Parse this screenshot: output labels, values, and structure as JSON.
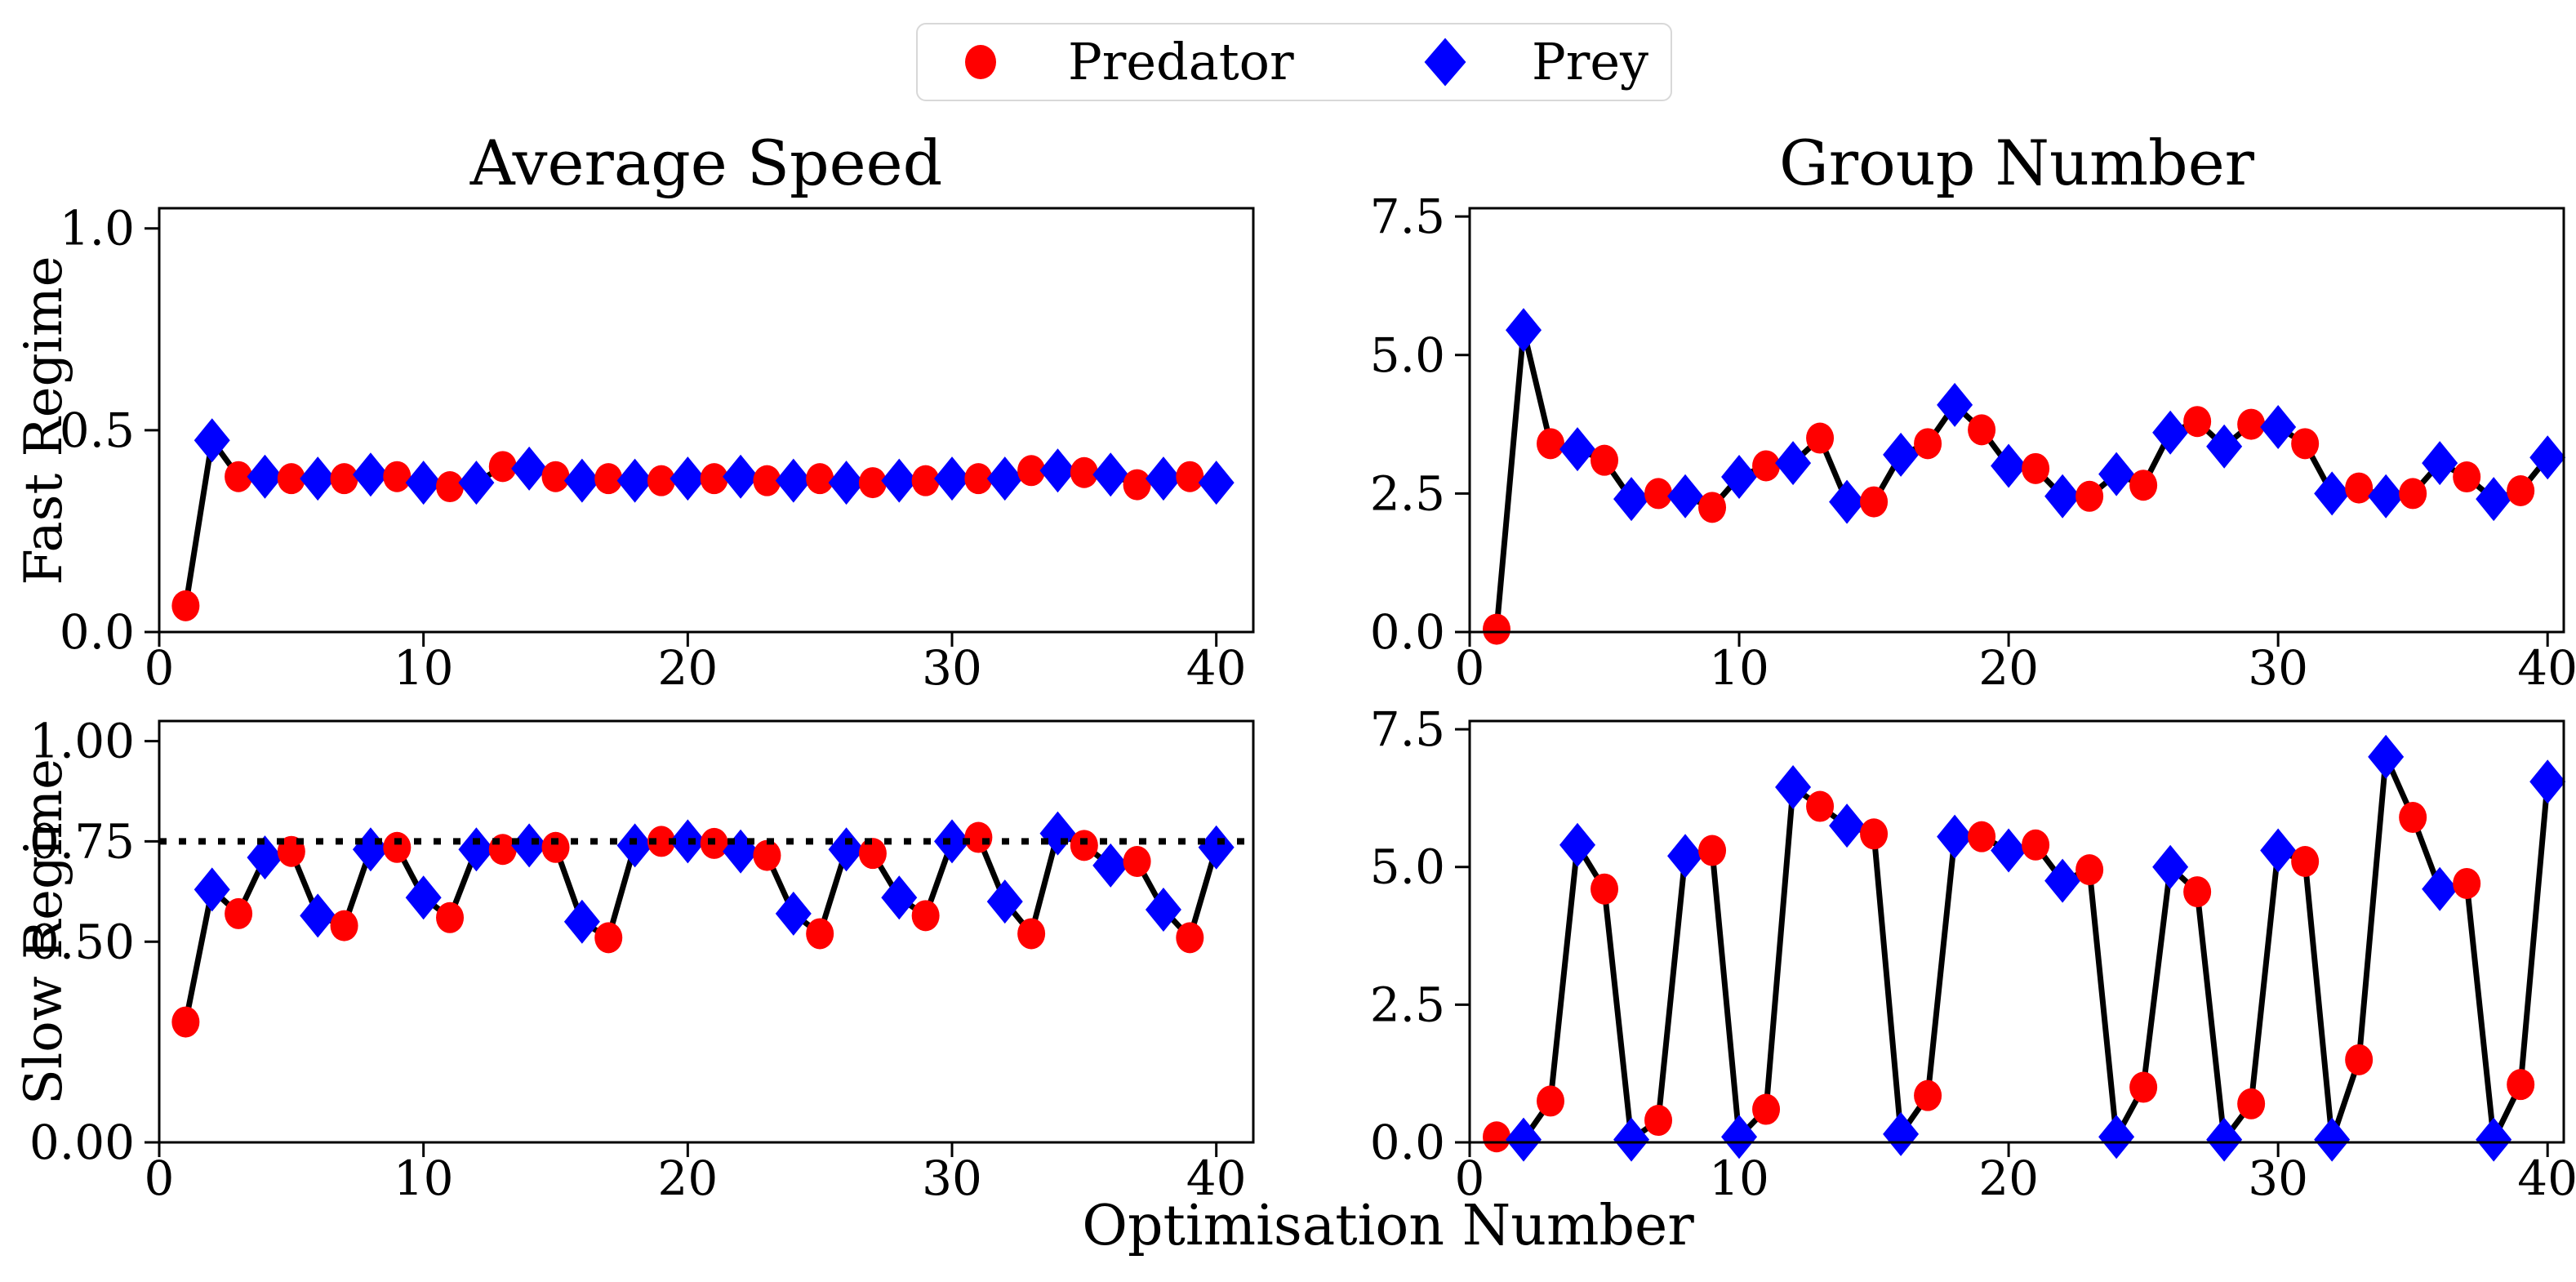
{
  "xlabel": "Optimisation Number",
  "legend": {
    "items": [
      {
        "label": "Predator",
        "marker": "circle-icon",
        "color": "#ff0000"
      },
      {
        "label": "Prey",
        "marker": "diamond-icon",
        "color": "#0000ff"
      }
    ]
  },
  "colors": {
    "predator": "#ff0000",
    "prey": "#0000ff",
    "line": "#000000",
    "frame": "#000000"
  },
  "marker_pattern": {
    "odd_optimisation_number": "Predator",
    "even_optimisation_number": "Prey"
  },
  "chart_data": [
    {
      "id": "fast-average-speed",
      "type": "line",
      "title": "Average Speed",
      "ylabel": "Fast Regime",
      "x_start": 1,
      "x_step": 1,
      "n_points": 40,
      "values": [
        0.065,
        0.475,
        0.385,
        0.385,
        0.38,
        0.38,
        0.38,
        0.39,
        0.385,
        0.37,
        0.36,
        0.37,
        0.41,
        0.405,
        0.385,
        0.375,
        0.38,
        0.375,
        0.375,
        0.38,
        0.38,
        0.385,
        0.375,
        0.375,
        0.38,
        0.37,
        0.37,
        0.375,
        0.375,
        0.38,
        0.38,
        0.38,
        0.4,
        0.4,
        0.395,
        0.39,
        0.365,
        0.38,
        0.385,
        0.37
      ],
      "xlim": [
        0,
        41.4
      ],
      "ylim": [
        0,
        1.05
      ],
      "xticks": [
        0,
        10,
        20,
        30,
        40
      ],
      "xtick_labels": [
        "0",
        "10",
        "20",
        "30",
        "40"
      ],
      "yticks": [
        0,
        0.5,
        1.0
      ],
      "ytick_labels": [
        "0.0",
        "0.5",
        "1.0"
      ],
      "target_line": null,
      "grid": false
    },
    {
      "id": "fast-group-number",
      "type": "line",
      "title": "Group Number",
      "ylabel": "",
      "x_start": 1,
      "x_step": 1,
      "n_points": 40,
      "values": [
        0.05,
        5.45,
        3.4,
        3.3,
        3.1,
        2.4,
        2.5,
        2.45,
        2.25,
        2.8,
        3.0,
        3.05,
        3.5,
        2.35,
        2.35,
        3.2,
        3.4,
        4.1,
        3.65,
        3.0,
        2.95,
        2.45,
        2.45,
        2.85,
        2.65,
        3.6,
        3.8,
        3.35,
        3.75,
        3.7,
        3.4,
        2.5,
        2.6,
        2.45,
        2.5,
        3.05,
        2.8,
        2.4,
        2.55,
        3.15
      ],
      "xlim": [
        0,
        40.6
      ],
      "ylim": [
        0,
        7.65
      ],
      "xticks": [
        0,
        10,
        20,
        30,
        40
      ],
      "xtick_labels": [
        "0",
        "10",
        "20",
        "30",
        "40"
      ],
      "yticks": [
        0,
        2.5,
        5.0,
        7.5
      ],
      "ytick_labels": [
        "0.0",
        "2.5",
        "5.0",
        "7.5"
      ],
      "target_line": null,
      "grid": false
    },
    {
      "id": "slow-average-speed",
      "type": "line",
      "title": "",
      "ylabel": "Slow Regime",
      "x_start": 1,
      "x_step": 1,
      "n_points": 40,
      "values": [
        0.3,
        0.63,
        0.57,
        0.71,
        0.725,
        0.565,
        0.54,
        0.73,
        0.735,
        0.61,
        0.56,
        0.73,
        0.73,
        0.74,
        0.735,
        0.55,
        0.51,
        0.74,
        0.75,
        0.75,
        0.745,
        0.725,
        0.715,
        0.57,
        0.52,
        0.73,
        0.72,
        0.61,
        0.565,
        0.75,
        0.76,
        0.6,
        0.52,
        0.77,
        0.74,
        0.69,
        0.7,
        0.58,
        0.51,
        0.735
      ],
      "xlim": [
        0,
        41.4
      ],
      "ylim": [
        0,
        1.05
      ],
      "xticks": [
        0,
        10,
        20,
        30,
        40
      ],
      "xtick_labels": [
        "0",
        "10",
        "20",
        "30",
        "40"
      ],
      "yticks": [
        0,
        0.5,
        0.75,
        1.0
      ],
      "ytick_labels": [
        "0.00",
        "0.50",
        "0.75",
        "1.00"
      ],
      "target_line": 0.75,
      "grid": false
    },
    {
      "id": "slow-group-number",
      "type": "line",
      "title": "",
      "ylabel": "",
      "x_start": 1,
      "x_step": 1,
      "n_points": 40,
      "values": [
        0.1,
        0.05,
        0.75,
        5.4,
        4.6,
        0.05,
        0.4,
        5.2,
        5.3,
        0.1,
        0.6,
        6.45,
        6.1,
        5.75,
        5.6,
        0.15,
        0.85,
        5.55,
        5.55,
        5.3,
        5.4,
        4.75,
        4.95,
        0.1,
        1.0,
        5.0,
        4.55,
        0.05,
        0.7,
        5.3,
        5.1,
        0.05,
        1.5,
        7.0,
        5.9,
        4.6,
        4.7,
        0.05,
        1.05,
        6.55
      ],
      "xlim": [
        0,
        40.6
      ],
      "ylim": [
        0,
        7.65
      ],
      "xticks": [
        0,
        10,
        20,
        30,
        40
      ],
      "xtick_labels": [
        "0",
        "10",
        "20",
        "30",
        "40"
      ],
      "yticks": [
        0,
        2.5,
        5.0,
        7.5
      ],
      "ytick_labels": [
        "0.0",
        "2.5",
        "5.0",
        "7.5"
      ],
      "target_line": null,
      "grid": false
    }
  ]
}
